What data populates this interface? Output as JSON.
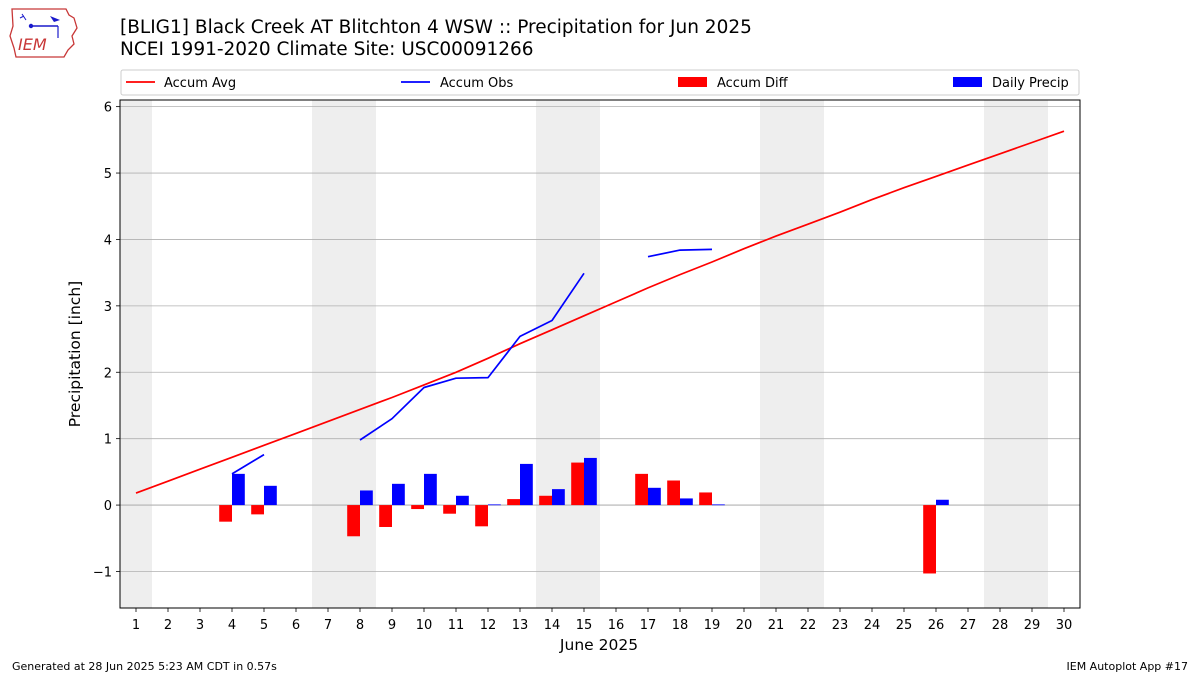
{
  "header": {
    "logo_text": "IEM",
    "title_line1": "[BLIG1] Black Creek  AT Blitchton 4 WSW :: Precipitation for Jun 2025",
    "title_line2": "NCEI 1991-2020 Climate Site: USC00091266"
  },
  "footer": {
    "generated": "Generated at 28 Jun 2025 5:23 AM CDT in 0.57s",
    "app": "IEM Autoplot App #17"
  },
  "colors": {
    "accum_avg": "#ff0000",
    "accum_obs": "#0000ff",
    "accum_diff": "#ff0000",
    "daily_precip": "#0000ff",
    "weekend_shade": "#eeeeee",
    "grid": "#b0b0b0"
  },
  "chart_data": {
    "type": "bar",
    "xlabel": "June 2025",
    "ylabel": "Precipitation [inch]",
    "xlim": [
      0.5,
      30.5
    ],
    "ylim": [
      -1.55,
      6.1
    ],
    "yticks": [
      -1,
      0,
      1,
      2,
      3,
      4,
      5,
      6
    ],
    "ytick_labels": [
      "−1",
      "0",
      "1",
      "2",
      "3",
      "4",
      "5",
      "6"
    ],
    "x": [
      1,
      2,
      3,
      4,
      5,
      6,
      7,
      8,
      9,
      10,
      11,
      12,
      13,
      14,
      15,
      16,
      17,
      18,
      19,
      20,
      21,
      22,
      23,
      24,
      25,
      26,
      27,
      28,
      29,
      30
    ],
    "xtick_labels": [
      "1",
      "2",
      "3",
      "4",
      "5",
      "6",
      "7",
      "8",
      "9",
      "10",
      "11",
      "12",
      "13",
      "14",
      "15",
      "16",
      "17",
      "18",
      "19",
      "20",
      "21",
      "22",
      "23",
      "24",
      "25",
      "26",
      "27",
      "28",
      "29",
      "30"
    ],
    "grid": "y",
    "legend": {
      "placement": "top",
      "entries": [
        "Accum Avg",
        "Accum Obs",
        "Accum Diff",
        "Daily Precip"
      ]
    },
    "weekend_spans": [
      [
        0.5,
        1.5
      ],
      [
        6.5,
        8.5
      ],
      [
        13.5,
        15.5
      ],
      [
        20.5,
        22.5
      ],
      [
        27.5,
        29.5
      ]
    ],
    "series": [
      {
        "name": "Accum Avg",
        "kind": "line",
        "x": [
          1,
          2,
          3,
          4,
          5,
          6,
          7,
          8,
          9,
          10,
          11,
          12,
          13,
          14,
          15,
          16,
          17,
          18,
          19,
          20,
          21,
          22,
          23,
          24,
          25,
          26,
          27,
          28,
          29,
          30
        ],
        "values": [
          0.18,
          0.36,
          0.54,
          0.72,
          0.9,
          1.08,
          1.26,
          1.44,
          1.62,
          1.81,
          2.0,
          2.21,
          2.43,
          2.64,
          2.85,
          3.06,
          3.27,
          3.47,
          3.66,
          3.86,
          4.05,
          4.23,
          4.41,
          4.6,
          4.78,
          4.95,
          5.12,
          5.29,
          5.46,
          5.63
        ]
      },
      {
        "name": "Accum Obs",
        "kind": "line",
        "x": [
          1,
          2,
          3,
          4,
          5,
          6,
          7,
          8,
          9,
          10,
          11,
          12,
          13,
          14,
          15,
          16,
          17,
          18,
          19,
          20,
          21,
          22,
          23,
          24,
          25,
          26,
          27,
          28,
          29,
          30
        ],
        "values": [
          null,
          null,
          null,
          0.47,
          0.76,
          null,
          null,
          0.98,
          1.3,
          1.77,
          1.91,
          1.92,
          2.54,
          2.78,
          3.49,
          null,
          3.74,
          3.84,
          3.85,
          null,
          null,
          null,
          null,
          null,
          null,
          null,
          null,
          null,
          null,
          null
        ]
      },
      {
        "name": "Accum Diff",
        "kind": "bar",
        "x": [
          4,
          5,
          8,
          9,
          10,
          11,
          12,
          13,
          14,
          15,
          17,
          18,
          19,
          26
        ],
        "values": [
          -0.25,
          -0.14,
          -0.47,
          -0.33,
          -0.06,
          -0.13,
          -0.32,
          0.09,
          0.14,
          0.64,
          0.47,
          0.37,
          0.19,
          -1.03
        ]
      },
      {
        "name": "Daily Precip",
        "kind": "bar",
        "x": [
          4,
          5,
          8,
          9,
          10,
          11,
          12,
          13,
          14,
          15,
          17,
          18,
          19,
          26
        ],
        "values": [
          0.47,
          0.29,
          0.22,
          0.32,
          0.47,
          0.14,
          0.01,
          0.62,
          0.24,
          0.71,
          0.26,
          0.1,
          0.01,
          0.08
        ]
      }
    ]
  }
}
